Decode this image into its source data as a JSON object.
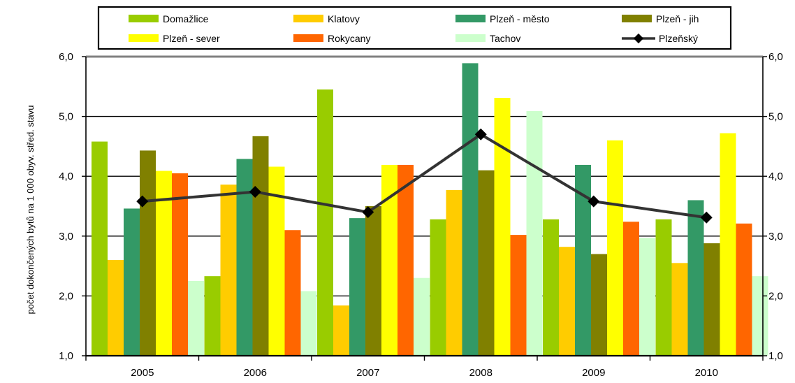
{
  "chart_data": {
    "type": "bar",
    "ylabel": "počet dokončených bytů na 1 000 obyv. střed. stavu",
    "ylim": [
      1.0,
      6.0
    ],
    "ytick_step": 1.0,
    "yticks": [
      "1,0",
      "2,0",
      "3,0",
      "4,0",
      "5,0",
      "6,0"
    ],
    "grid": true,
    "legend_position": "top",
    "categories": [
      "2005",
      "2006",
      "2007",
      "2008",
      "2009",
      "2010"
    ],
    "series": [
      {
        "name": "Domažlice",
        "type": "bar",
        "color": "#99cc00",
        "values": [
          4.58,
          2.33,
          5.45,
          3.28,
          3.28,
          3.28
        ]
      },
      {
        "name": "Klatovy",
        "type": "bar",
        "color": "#ffcc00",
        "values": [
          2.6,
          3.86,
          1.84,
          3.77,
          2.82,
          2.55
        ]
      },
      {
        "name": "Plzeň - město",
        "type": "bar",
        "color": "#339966",
        "values": [
          3.46,
          4.29,
          3.3,
          5.89,
          4.19,
          3.6
        ]
      },
      {
        "name": "Plzeň - jih",
        "type": "bar",
        "color": "#808000",
        "values": [
          4.43,
          4.67,
          3.5,
          4.1,
          2.7,
          2.88
        ]
      },
      {
        "name": "Plzeň - sever",
        "type": "bar",
        "color": "#ffff00",
        "values": [
          4.09,
          4.16,
          4.19,
          5.31,
          4.6,
          4.72
        ]
      },
      {
        "name": "Rokycany",
        "type": "bar",
        "color": "#ff6600",
        "values": [
          4.05,
          3.1,
          4.19,
          3.02,
          3.24,
          3.21
        ]
      },
      {
        "name": "Tachov",
        "type": "bar",
        "color": "#ccffcc",
        "values": [
          2.25,
          2.08,
          2.3,
          5.09,
          2.97,
          2.33
        ]
      },
      {
        "name": "Plzeňský",
        "type": "line",
        "color": "#333333",
        "values": [
          3.58,
          3.74,
          3.4,
          4.7,
          3.58,
          3.31
        ]
      }
    ]
  }
}
